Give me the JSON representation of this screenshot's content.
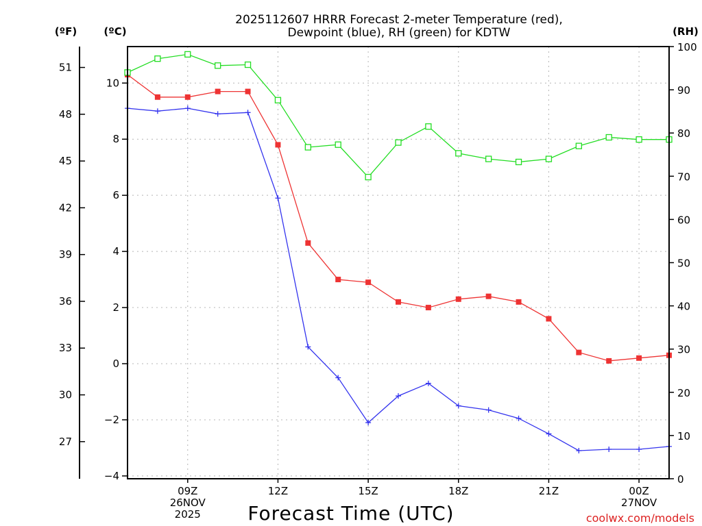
{
  "chart_data": {
    "type": "line",
    "title_line1": "2025112607 HRRR Forecast 2-meter Temperature (red),",
    "title_line2": "Dewpoint (blue), RH (green) for KDTW",
    "xlabel": "Forecast Time (UTC)",
    "credit": "coolwx.com/models",
    "units": {
      "fahrenheit": "(ºF)",
      "celsius": "(ºC)",
      "rh": "(RH)"
    },
    "x_hours": [
      7,
      8,
      9,
      10,
      11,
      12,
      13,
      14,
      15,
      16,
      17,
      18,
      19,
      20,
      21,
      22,
      23,
      24,
      25
    ],
    "xlim": [
      7,
      25
    ],
    "x_ticks": [
      {
        "hour": 9,
        "lines": [
          "09Z",
          "26NOV",
          "2025"
        ]
      },
      {
        "hour": 12,
        "lines": [
          "12Z"
        ]
      },
      {
        "hour": 15,
        "lines": [
          "15Z"
        ]
      },
      {
        "hour": 18,
        "lines": [
          "18Z"
        ]
      },
      {
        "hour": 21,
        "lines": [
          "21Z"
        ]
      },
      {
        "hour": 24,
        "lines": [
          "00Z",
          "27NOV"
        ]
      }
    ],
    "celsius_axis": {
      "range": [
        -4.1,
        11.3
      ],
      "ticks": [
        "10",
        "8",
        "6",
        "4",
        "2",
        "0",
        "-2",
        "-4"
      ]
    },
    "fahrenheit_axis": {
      "ticks": [
        "51",
        "48",
        "45",
        "42",
        "39",
        "36",
        "33",
        "30",
        "27"
      ]
    },
    "rh_axis": {
      "range": [
        0,
        100
      ],
      "ticks": [
        "100",
        "90",
        "80",
        "70",
        "60",
        "50",
        "40",
        "30",
        "20",
        "10",
        "0"
      ]
    },
    "series": [
      {
        "name": "2-meter Temperature",
        "color": "#ee3333",
        "axis": "celsius",
        "marker": "filled-square",
        "values": [
          10.3,
          9.5,
          9.5,
          9.7,
          9.7,
          7.8,
          4.3,
          3.0,
          2.9,
          2.2,
          2.0,
          2.3,
          2.4,
          2.2,
          1.6,
          0.4,
          0.1,
          0.2,
          0.3
        ]
      },
      {
        "name": "Dewpoint",
        "color": "#3333ee",
        "axis": "celsius",
        "marker": "plus",
        "values": [
          9.1,
          9.0,
          9.1,
          8.9,
          8.95,
          5.9,
          0.6,
          -0.5,
          -2.1,
          -1.15,
          -0.7,
          -1.5,
          -1.65,
          -1.95,
          -2.5,
          -3.1,
          -3.05,
          -3.05,
          -2.95
        ]
      },
      {
        "name": "Relative Humidity",
        "color": "#22dd22",
        "axis": "rh",
        "marker": "open-square",
        "values": [
          94,
          97.2,
          98.2,
          95.6,
          95.8,
          87.6,
          76.7,
          77.3,
          69.8,
          77.8,
          81.5,
          75.3,
          74.0,
          73.3,
          74.0,
          77.0,
          79.0,
          78.5,
          78.5
        ]
      }
    ]
  }
}
